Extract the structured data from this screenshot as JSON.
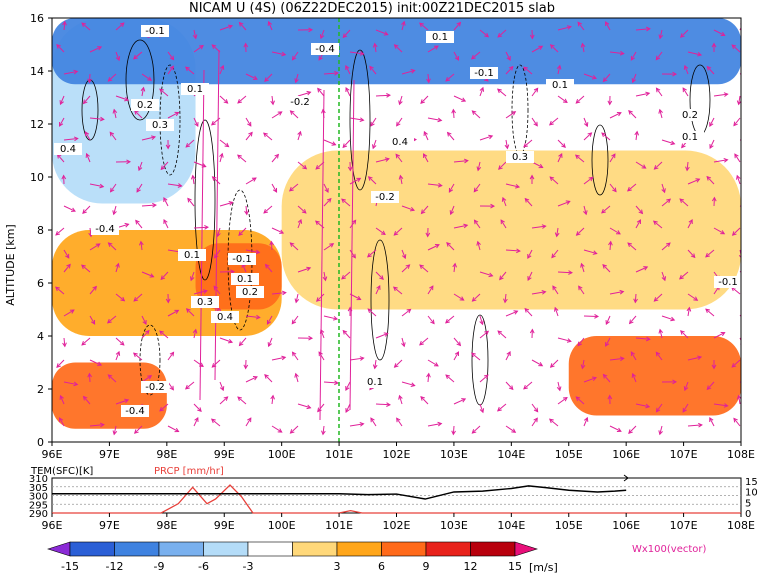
{
  "chart_data": [
    {
      "type": "heatmap",
      "title": "NICAM U (4S) (06Z22DEC2015) init:00Z21DEC2015 slab",
      "ylabel": "ALTITUDE [km]",
      "xlabel": "",
      "xlim": [
        "96E",
        "108E"
      ],
      "ylim": [
        0,
        16
      ],
      "x_ticks": [
        "96E",
        "97E",
        "98E",
        "99E",
        "100E",
        "101E",
        "102E",
        "103E",
        "104E",
        "105E",
        "106E",
        "107E",
        "108E"
      ],
      "y_ticks": [
        "0",
        "2",
        "4",
        "6",
        "8",
        "10",
        "12",
        "14",
        "16"
      ],
      "marker_line_lon": "101E",
      "contour_labels": [
        "-0.1",
        "0.1",
        "0.2",
        "0.3",
        "0.4",
        "-0.2",
        "-0.4",
        "0.1"
      ],
      "vector_legend": "Wx100(vector)",
      "zones": [
        {
          "x": [
            96,
            108
          ],
          "y": [
            13.5,
            16
          ],
          "u": -10
        },
        {
          "x": [
            96,
            98.5
          ],
          "y": [
            9,
            16
          ],
          "u": -6
        },
        {
          "x": [
            96,
            100
          ],
          "y": [
            4,
            8
          ],
          "u": 6
        },
        {
          "x": [
            96,
            98
          ],
          "y": [
            0.5,
            3
          ],
          "u": 11
        },
        {
          "x": [
            98.5,
            100
          ],
          "y": [
            5,
            7.5
          ],
          "u": 10
        },
        {
          "x": [
            105,
            108
          ],
          "y": [
            1,
            4
          ],
          "u": 10
        },
        {
          "x": [
            100,
            108
          ],
          "y": [
            5,
            11
          ],
          "u": 4
        },
        {
          "x": [
            101,
            104
          ],
          "y": [
            0,
            6
          ],
          "u": 1
        }
      ]
    },
    {
      "type": "line",
      "left_label": "TEM(SFC)[K]",
      "right_label": "PRCP [mm/hr]",
      "left_ticks": [
        "310",
        "305",
        "300",
        "295",
        "290"
      ],
      "right_ticks": [
        "15",
        "10",
        "5",
        "0"
      ],
      "series": [
        {
          "name": "TEM(SFC)[K]",
          "color": "#000000",
          "x": [
            96,
            97,
            98,
            99,
            100,
            101,
            101.5,
            102,
            102.5,
            103,
            103.5,
            104,
            104.3,
            104.6,
            105,
            105.5,
            105.8,
            106
          ],
          "y": [
            301,
            301,
            301,
            301,
            301,
            301,
            300.5,
            300.8,
            298,
            302,
            302.5,
            304,
            305.5,
            304.5,
            303,
            302,
            302.5,
            303
          ]
        },
        {
          "name": "PRCP [mm/hr]",
          "color": "#e8403a",
          "x": [
            96,
            97,
            97.9,
            98.2,
            98.45,
            98.7,
            98.85,
            99.1,
            99.3,
            99.5,
            100,
            101,
            101.2,
            101.4,
            102,
            108
          ],
          "y": [
            0,
            0,
            0,
            4,
            11,
            4,
            6,
            12,
            7,
            0,
            0,
            0,
            1,
            0,
            0,
            0
          ]
        }
      ]
    }
  ],
  "colorbar": {
    "ticks": [
      "-15",
      "-12",
      "-9",
      "-6",
      "-3",
      "3",
      "6",
      "9",
      "12",
      "15"
    ],
    "unit": "[m/s]",
    "colors": [
      "#8b2bd6",
      "#2b5fd6",
      "#3f82e0",
      "#79b0ee",
      "#b4dcf8",
      "#ffffff",
      "#ffd87a",
      "#ffa61a",
      "#ff6a1a",
      "#e8221b",
      "#b8000d",
      "#e8107a"
    ]
  },
  "colors": {
    "vector": "#e0219a",
    "marker_line": "#22b822",
    "precip": "#e8403a"
  }
}
